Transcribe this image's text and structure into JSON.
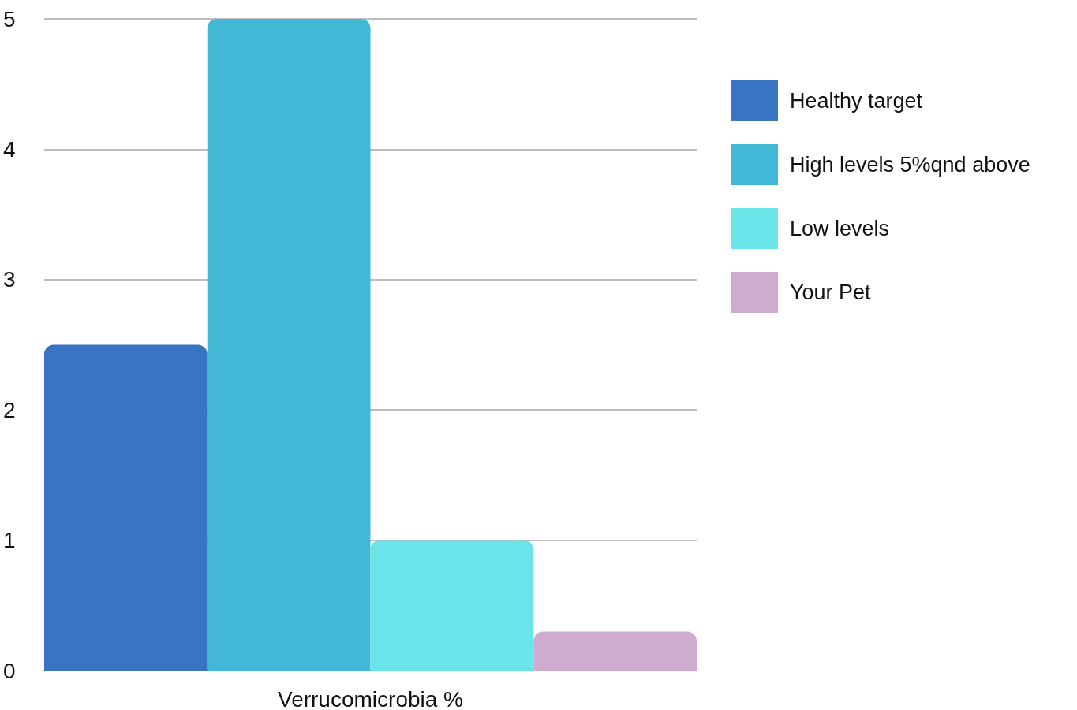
{
  "chart_data": {
    "type": "bar",
    "categories": [
      "Verrucomicrobia %"
    ],
    "series": [
      {
        "name": "Healthy target",
        "color": "#3874c2",
        "values": [
          2.5
        ]
      },
      {
        "name": "High levels 5%qnd above",
        "color": "#42b7d6",
        "values": [
          5
        ]
      },
      {
        "name": "Low levels",
        "color": "#6ae4e8",
        "values": [
          1
        ]
      },
      {
        "name": "Your Pet",
        "color": "#d0abd0",
        "values": [
          0.3
        ]
      }
    ],
    "ylim": [
      0,
      5
    ],
    "yticks": [
      0,
      1,
      2,
      3,
      4,
      5
    ],
    "grid": "y",
    "legend": "top right"
  }
}
